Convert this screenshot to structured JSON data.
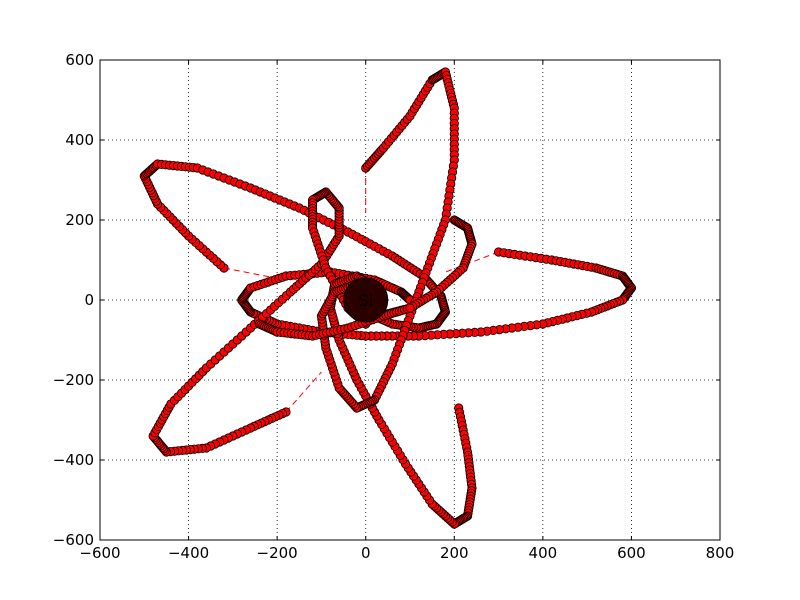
{
  "chart_data": {
    "type": "scatter",
    "title": "",
    "xlabel": "",
    "ylabel": "",
    "xlim": [
      -600,
      800
    ],
    "ylim": [
      -600,
      600
    ],
    "xticks": [
      -600,
      -400,
      -200,
      0,
      200,
      400,
      600,
      800
    ],
    "yticks": [
      -600,
      -400,
      -200,
      0,
      200,
      400,
      600
    ],
    "xtick_labels": [
      "−600",
      "−400",
      "−200",
      "0",
      "200",
      "400",
      "600",
      "800"
    ],
    "ytick_labels": [
      "−600",
      "−400",
      "−200",
      "0",
      "200",
      "400",
      "600"
    ],
    "grid": true,
    "marker_color": "#ff0000",
    "marker_edge_color": "#000000",
    "line_style": "dashed",
    "curves": [
      {
        "start": [
          300,
          120
        ],
        "points": [
          [
            300,
            120
          ],
          [
            420,
            100
          ],
          [
            520,
            80
          ],
          [
            580,
            60
          ],
          [
            600,
            30
          ],
          [
            580,
            0
          ],
          [
            510,
            -30
          ],
          [
            400,
            -60
          ],
          [
            260,
            -80
          ],
          [
            120,
            -90
          ],
          [
            0,
            -90
          ],
          [
            -100,
            -80
          ],
          [
            -200,
            -60
          ],
          [
            -260,
            -30
          ],
          [
            -280,
            0
          ],
          [
            -260,
            30
          ],
          [
            -180,
            60
          ],
          [
            -80,
            70
          ],
          [
            20,
            50
          ],
          [
            80,
            20
          ],
          [
            100,
            0
          ]
        ]
      },
      {
        "start": [
          -320,
          80
        ],
        "points": [
          [
            -320,
            80
          ],
          [
            -400,
            160
          ],
          [
            -470,
            240
          ],
          [
            -500,
            310
          ],
          [
            -470,
            340
          ],
          [
            -380,
            330
          ],
          [
            -260,
            280
          ],
          [
            -150,
            230
          ],
          [
            -40,
            170
          ],
          [
            60,
            110
          ],
          [
            130,
            60
          ],
          [
            170,
            10
          ],
          [
            180,
            -30
          ],
          [
            160,
            -60
          ],
          [
            120,
            -70
          ],
          [
            60,
            -60
          ],
          [
            0,
            -30
          ],
          [
            -40,
            0
          ]
        ]
      },
      {
        "start": [
          -180,
          -280
        ],
        "points": [
          [
            -180,
            -280
          ],
          [
            -260,
            -320
          ],
          [
            -360,
            -370
          ],
          [
            -450,
            -380
          ],
          [
            -480,
            -340
          ],
          [
            -440,
            -260
          ],
          [
            -360,
            -170
          ],
          [
            -260,
            -70
          ],
          [
            -170,
            20
          ],
          [
            -100,
            90
          ],
          [
            -60,
            160
          ],
          [
            -60,
            230
          ],
          [
            -90,
            270
          ],
          [
            -120,
            250
          ],
          [
            -120,
            180
          ],
          [
            -90,
            80
          ],
          [
            -40,
            -20
          ],
          [
            0,
            -60
          ]
        ]
      },
      {
        "start": [
          210,
          -270
        ],
        "points": [
          [
            210,
            -270
          ],
          [
            230,
            -380
          ],
          [
            240,
            -470
          ],
          [
            230,
            -540
          ],
          [
            200,
            -560
          ],
          [
            150,
            -510
          ],
          [
            90,
            -410
          ],
          [
            30,
            -300
          ],
          [
            -20,
            -200
          ],
          [
            -60,
            -100
          ],
          [
            -80,
            -20
          ],
          [
            -70,
            40
          ],
          [
            -20,
            60
          ],
          [
            20,
            30
          ]
        ]
      },
      {
        "start": [
          0,
          330
        ],
        "points": [
          [
            0,
            330
          ],
          [
            40,
            380
          ],
          [
            100,
            460
          ],
          [
            150,
            550
          ],
          [
            180,
            570
          ],
          [
            200,
            480
          ],
          [
            200,
            350
          ],
          [
            180,
            200
          ],
          [
            140,
            80
          ],
          [
            100,
            -40
          ],
          [
            60,
            -160
          ],
          [
            20,
            -250
          ],
          [
            -20,
            -270
          ],
          [
            -60,
            -220
          ],
          [
            -90,
            -120
          ],
          [
            -100,
            -40
          ],
          [
            -70,
            20
          ],
          [
            -20,
            40
          ],
          [
            20,
            20
          ]
        ]
      },
      {
        "start": [
          200,
          200
        ],
        "points": [
          [
            200,
            200
          ],
          [
            230,
            180
          ],
          [
            240,
            140
          ],
          [
            220,
            80
          ],
          [
            160,
            20
          ],
          [
            100,
            -20
          ],
          [
            30,
            -40
          ]
        ]
      },
      {
        "start": [
          -240,
          -60
        ],
        "points": [
          [
            -240,
            -60
          ],
          [
            -200,
            -80
          ],
          [
            -120,
            -90
          ],
          [
            -40,
            -70
          ],
          [
            40,
            -40
          ],
          [
            100,
            -20
          ]
        ]
      }
    ],
    "connectors": [
      {
        "from": [
          -320,
          80
        ],
        "to": [
          -180,
          50
        ]
      },
      {
        "from": [
          300,
          120
        ],
        "to": [
          180,
          70
        ]
      },
      {
        "from": [
          0,
          330
        ],
        "to": [
          0,
          220
        ]
      },
      {
        "from": [
          -180,
          -280
        ],
        "to": [
          -100,
          -180
        ]
      }
    ],
    "core": {
      "x": 0,
      "y": 0,
      "label": "Si"
    }
  }
}
